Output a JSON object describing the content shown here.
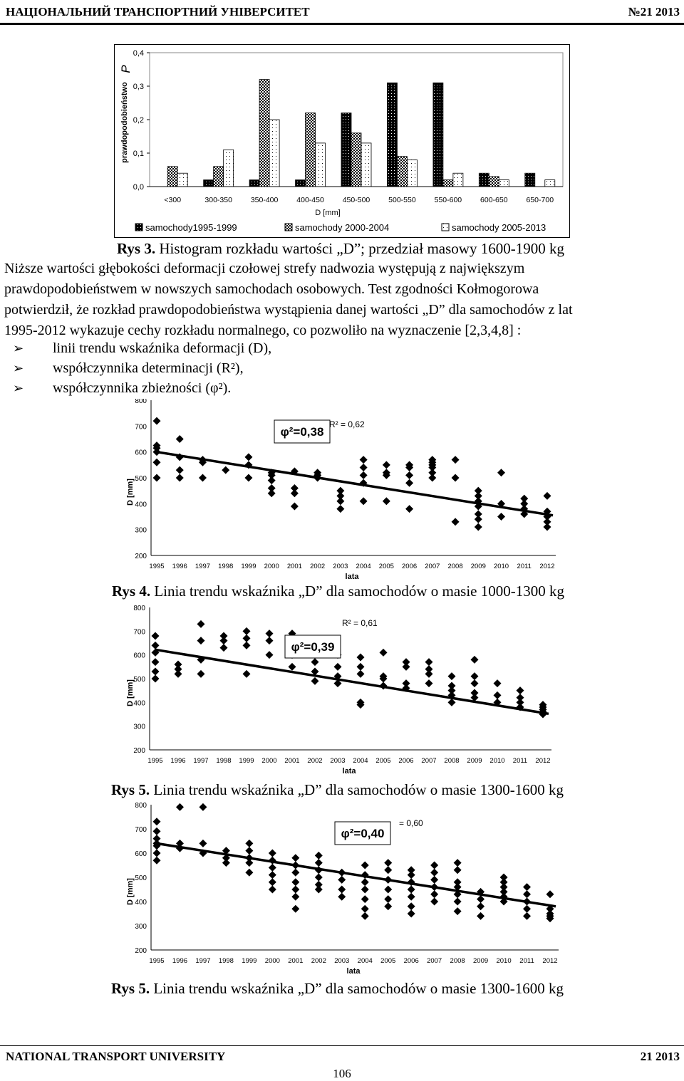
{
  "header": {
    "left": "НАЦІОНАЛЬНИЙ ТРАНСПОРТНИЙ УНІВЕРСИТЕТ",
    "right": "№21 2013"
  },
  "footer": {
    "left": "NATIONAL TRANSPORT UNIVERSITY",
    "right": "21 2013",
    "page": "106"
  },
  "text": {
    "rys3_label": "Rys 3.",
    "rys3_text": "Histogram rozkładu wartości „D”; przedział masowy 1600-1900 kg",
    "para_lines": [
      "Niższe wartości głębokości deformacji czołowej strefy nadwozia występują z największym",
      "prawdopodobieństwem w nowszych samochodach osobowych. Test zgodności Kołmogorowa",
      "potwierdził, że rozkład prawdopodobieństwa wystąpienia danej wartości „D” dla samochodów z lat",
      "1995-2012 wykazuje cechy rozkładu normalnego, co pozwoliło na wyznaczenie [2,3,4,8] :"
    ],
    "bullets": [
      "linii trendu wskaźnika deformacji (D),",
      "współczynnika determinacji (R²),",
      "współczynnika zbieżności (φ²)."
    ],
    "rys4_label": "Rys 4.",
    "rys4_text": "Linia trendu wskaźnika „D” dla samochodów o masie 1000-1300 kg",
    "rys5a_label": "Rys 5.",
    "rys5a_text": "Linia trendu wskaźnika „D” dla samochodów o masie 1300-1600 kg",
    "rys5b_label": "Rys 5.",
    "rys5b_text": "Linia trendu wskaźnika „D” dla samochodów o masie 1300-1600 kg"
  },
  "colors": {
    "ink": "#000000",
    "paper": "#ffffff"
  },
  "chart_data": [
    {
      "type": "bar",
      "ylabel": "prawdopodobieństwo   P",
      "xlabel": "D [mm]",
      "ylim": [
        0,
        0.4
      ],
      "yticks": [
        "0,0",
        "0,1",
        "0,2",
        "0,3",
        "0,4"
      ],
      "categories": [
        "<300",
        "300-350",
        "350-400",
        "400-450",
        "450-500",
        "500-550",
        "550-600",
        "600-650",
        "650-700"
      ],
      "series": [
        {
          "name": "samochody1995-1999",
          "style": "solid",
          "values": [
            0,
            0.02,
            0.02,
            0.02,
            0.22,
            0.31,
            0.31,
            0.04,
            0.04
          ]
        },
        {
          "name": "samochody 2000-2004",
          "style": "check",
          "values": [
            0.06,
            0.06,
            0.32,
            0.22,
            0.16,
            0.09,
            0.02,
            0.03,
            0
          ]
        },
        {
          "name": "samochody 2005-2013",
          "style": "dots",
          "values": [
            0.04,
            0.11,
            0.2,
            0.13,
            0.13,
            0.08,
            0.04,
            0.02,
            0.02
          ]
        }
      ],
      "legend": "bottom"
    },
    {
      "type": "scatter",
      "xlabel": "lata",
      "ylabel": "D [mm]",
      "ylim": [
        200,
        800
      ],
      "yticks": [
        "200",
        "300",
        "400",
        "500",
        "600",
        "700",
        "800"
      ],
      "categories": [
        "1995",
        "1996",
        "1997",
        "1998",
        "1999",
        "2000",
        "2001",
        "2002",
        "2003",
        "2004",
        "2005",
        "2006",
        "2007",
        "2008",
        "2009",
        "2010",
        "2011",
        "2012"
      ],
      "r2_label": "R² = 0,62",
      "phi_label": "φ²=0,38",
      "trend": {
        "start": 600,
        "end": 355
      },
      "points": [
        [
          1995,
          720
        ],
        [
          1995,
          625
        ],
        [
          1995,
          615
        ],
        [
          1995,
          600
        ],
        [
          1995,
          560
        ],
        [
          1995,
          500
        ],
        [
          1996,
          650
        ],
        [
          1996,
          580
        ],
        [
          1996,
          530
        ],
        [
          1996,
          500
        ],
        [
          1997,
          570
        ],
        [
          1997,
          560
        ],
        [
          1997,
          500
        ],
        [
          1998,
          530
        ],
        [
          1999,
          580
        ],
        [
          1999,
          550
        ],
        [
          1999,
          500
        ],
        [
          2000,
          520
        ],
        [
          2000,
          510
        ],
        [
          2000,
          490
        ],
        [
          2000,
          460
        ],
        [
          2000,
          440
        ],
        [
          2001,
          525
        ],
        [
          2001,
          460
        ],
        [
          2001,
          440
        ],
        [
          2001,
          390
        ],
        [
          2002,
          520
        ],
        [
          2002,
          510
        ],
        [
          2002,
          500
        ],
        [
          2003,
          450
        ],
        [
          2003,
          430
        ],
        [
          2003,
          410
        ],
        [
          2003,
          380
        ],
        [
          2004,
          570
        ],
        [
          2004,
          540
        ],
        [
          2004,
          510
        ],
        [
          2004,
          480
        ],
        [
          2004,
          410
        ],
        [
          2005,
          550
        ],
        [
          2005,
          520
        ],
        [
          2005,
          510
        ],
        [
          2005,
          410
        ],
        [
          2006,
          550
        ],
        [
          2006,
          540
        ],
        [
          2006,
          510
        ],
        [
          2006,
          480
        ],
        [
          2006,
          380
        ],
        [
          2007,
          570
        ],
        [
          2007,
          560
        ],
        [
          2007,
          550
        ],
        [
          2007,
          540
        ],
        [
          2007,
          520
        ],
        [
          2007,
          500
        ],
        [
          2008,
          570
        ],
        [
          2008,
          500
        ],
        [
          2008,
          330
        ],
        [
          2009,
          450
        ],
        [
          2009,
          430
        ],
        [
          2009,
          410
        ],
        [
          2009,
          390
        ],
        [
          2009,
          360
        ],
        [
          2009,
          340
        ],
        [
          2009,
          310
        ],
        [
          2010,
          520
        ],
        [
          2010,
          400
        ],
        [
          2010,
          350
        ],
        [
          2011,
          420
        ],
        [
          2011,
          400
        ],
        [
          2011,
          380
        ],
        [
          2011,
          360
        ],
        [
          2012,
          430
        ],
        [
          2012,
          370
        ],
        [
          2012,
          350
        ],
        [
          2012,
          330
        ],
        [
          2012,
          310
        ]
      ]
    },
    {
      "type": "scatter",
      "xlabel": "lata",
      "ylabel": "D [mm]",
      "ylim": [
        200,
        800
      ],
      "yticks": [
        "200",
        "300",
        "400",
        "500",
        "600",
        "700",
        "800"
      ],
      "categories": [
        "1995",
        "1996",
        "1997",
        "1998",
        "1999",
        "2000",
        "2001",
        "2002",
        "2003",
        "2004",
        "2005",
        "2006",
        "2007",
        "2008",
        "2009",
        "2010",
        "2011",
        "2012"
      ],
      "r2_label": "R² = 0,61",
      "phi_label": "φ²=0,39",
      "trend": {
        "start": 622,
        "end": 352
      },
      "points": [
        [
          1995,
          680
        ],
        [
          1995,
          640
        ],
        [
          1995,
          610
        ],
        [
          1995,
          570
        ],
        [
          1995,
          530
        ],
        [
          1995,
          500
        ],
        [
          1996,
          560
        ],
        [
          1996,
          540
        ],
        [
          1996,
          520
        ],
        [
          1997,
          730
        ],
        [
          1997,
          660
        ],
        [
          1997,
          580
        ],
        [
          1997,
          520
        ],
        [
          1998,
          680
        ],
        [
          1998,
          660
        ],
        [
          1998,
          630
        ],
        [
          1999,
          700
        ],
        [
          1999,
          670
        ],
        [
          1999,
          640
        ],
        [
          1999,
          520
        ],
        [
          2000,
          690
        ],
        [
          2000,
          660
        ],
        [
          2000,
          600
        ],
        [
          2001,
          690
        ],
        [
          2001,
          650
        ],
        [
          2001,
          600
        ],
        [
          2001,
          550
        ],
        [
          2002,
          570
        ],
        [
          2002,
          530
        ],
        [
          2002,
          490
        ],
        [
          2003,
          600
        ],
        [
          2003,
          550
        ],
        [
          2003,
          510
        ],
        [
          2003,
          480
        ],
        [
          2004,
          590
        ],
        [
          2004,
          550
        ],
        [
          2004,
          520
        ],
        [
          2004,
          400
        ],
        [
          2004,
          390
        ],
        [
          2005,
          610
        ],
        [
          2005,
          510
        ],
        [
          2005,
          500
        ],
        [
          2005,
          470
        ],
        [
          2006,
          570
        ],
        [
          2006,
          550
        ],
        [
          2006,
          480
        ],
        [
          2006,
          460
        ],
        [
          2007,
          570
        ],
        [
          2007,
          540
        ],
        [
          2007,
          520
        ],
        [
          2007,
          480
        ],
        [
          2008,
          510
        ],
        [
          2008,
          470
        ],
        [
          2008,
          450
        ],
        [
          2008,
          430
        ],
        [
          2008,
          400
        ],
        [
          2009,
          580
        ],
        [
          2009,
          510
        ],
        [
          2009,
          480
        ],
        [
          2009,
          440
        ],
        [
          2009,
          420
        ],
        [
          2010,
          480
        ],
        [
          2010,
          430
        ],
        [
          2010,
          400
        ],
        [
          2011,
          450
        ],
        [
          2011,
          420
        ],
        [
          2011,
          400
        ],
        [
          2011,
          380
        ],
        [
          2012,
          390
        ],
        [
          2012,
          380
        ],
        [
          2012,
          370
        ],
        [
          2012,
          360
        ],
        [
          2012,
          350
        ]
      ]
    },
    {
      "type": "scatter",
      "xlabel": "lata",
      "ylabel": "D [mm]",
      "ylim": [
        200,
        800
      ],
      "yticks": [
        "200",
        "300",
        "400",
        "500",
        "600",
        "700",
        "800"
      ],
      "categories": [
        "1995",
        "1996",
        "1997",
        "1998",
        "1999",
        "2000",
        "2001",
        "2002",
        "2003",
        "2004",
        "2005",
        "2006",
        "2007",
        "2008",
        "2009",
        "2010",
        "2011",
        "2012"
      ],
      "r2_label": "= 0,60",
      "phi_label": "φ²=0,40",
      "trend": {
        "start": 640,
        "end": 380
      },
      "points": [
        [
          1995,
          730
        ],
        [
          1995,
          690
        ],
        [
          1995,
          660
        ],
        [
          1995,
          640
        ],
        [
          1995,
          630
        ],
        [
          1995,
          600
        ],
        [
          1995,
          570
        ],
        [
          1996,
          790
        ],
        [
          1996,
          640
        ],
        [
          1996,
          620
        ],
        [
          1997,
          790
        ],
        [
          1997,
          640
        ],
        [
          1997,
          600
        ],
        [
          1998,
          610
        ],
        [
          1998,
          580
        ],
        [
          1998,
          560
        ],
        [
          1999,
          640
        ],
        [
          1999,
          610
        ],
        [
          1999,
          580
        ],
        [
          1999,
          560
        ],
        [
          1999,
          520
        ],
        [
          2000,
          600
        ],
        [
          2000,
          570
        ],
        [
          2000,
          540
        ],
        [
          2000,
          510
        ],
        [
          2000,
          480
        ],
        [
          2000,
          450
        ],
        [
          2001,
          580
        ],
        [
          2001,
          550
        ],
        [
          2001,
          520
        ],
        [
          2001,
          480
        ],
        [
          2001,
          450
        ],
        [
          2001,
          420
        ],
        [
          2001,
          370
        ],
        [
          2002,
          590
        ],
        [
          2002,
          560
        ],
        [
          2002,
          530
        ],
        [
          2002,
          500
        ],
        [
          2002,
          470
        ],
        [
          2002,
          450
        ],
        [
          2003,
          700
        ],
        [
          2003,
          680
        ],
        [
          2003,
          520
        ],
        [
          2003,
          490
        ],
        [
          2003,
          450
        ],
        [
          2003,
          420
        ],
        [
          2004,
          550
        ],
        [
          2004,
          510
        ],
        [
          2004,
          480
        ],
        [
          2004,
          450
        ],
        [
          2004,
          410
        ],
        [
          2004,
          370
        ],
        [
          2004,
          340
        ],
        [
          2005,
          560
        ],
        [
          2005,
          530
        ],
        [
          2005,
          490
        ],
        [
          2005,
          450
        ],
        [
          2005,
          410
        ],
        [
          2005,
          380
        ],
        [
          2006,
          530
        ],
        [
          2006,
          510
        ],
        [
          2006,
          480
        ],
        [
          2006,
          450
        ],
        [
          2006,
          420
        ],
        [
          2006,
          380
        ],
        [
          2006,
          350
        ],
        [
          2007,
          550
        ],
        [
          2007,
          520
        ],
        [
          2007,
          490
        ],
        [
          2007,
          460
        ],
        [
          2007,
          430
        ],
        [
          2007,
          400
        ],
        [
          2008,
          560
        ],
        [
          2008,
          530
        ],
        [
          2008,
          480
        ],
        [
          2008,
          460
        ],
        [
          2008,
          430
        ],
        [
          2008,
          400
        ],
        [
          2008,
          360
        ],
        [
          2009,
          440
        ],
        [
          2009,
          410
        ],
        [
          2009,
          380
        ],
        [
          2009,
          340
        ],
        [
          2010,
          500
        ],
        [
          2010,
          480
        ],
        [
          2010,
          460
        ],
        [
          2010,
          440
        ],
        [
          2010,
          420
        ],
        [
          2010,
          400
        ],
        [
          2011,
          460
        ],
        [
          2011,
          430
        ],
        [
          2011,
          400
        ],
        [
          2011,
          370
        ],
        [
          2011,
          340
        ],
        [
          2012,
          430
        ],
        [
          2012,
          370
        ],
        [
          2012,
          350
        ],
        [
          2012,
          340
        ],
        [
          2012,
          330
        ]
      ]
    }
  ]
}
